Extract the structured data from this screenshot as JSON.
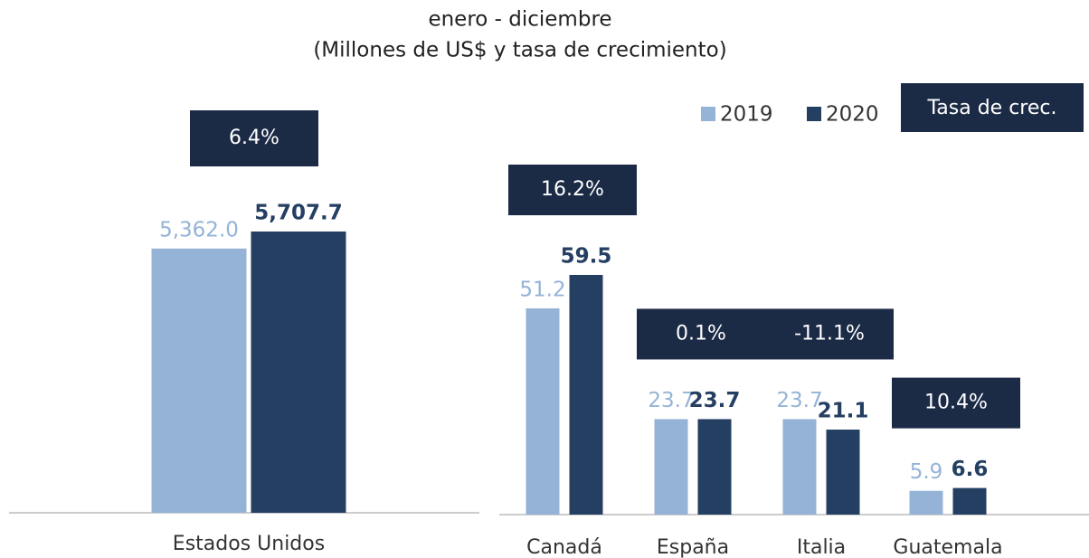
{
  "chart_data": [
    {
      "type": "bar",
      "title": "enero - diciembre",
      "subtitle": "(Millones de US$ y tasa de crecimiento)",
      "categories": [
        "Estados Unidos"
      ],
      "series": [
        {
          "name": "2019",
          "color": "#94b3d7",
          "values": [
            5362.0
          ],
          "value_labels": [
            "5,362.0"
          ]
        },
        {
          "name": "2020",
          "color": "#243f62",
          "values": [
            5707.7
          ],
          "value_labels": [
            "5,707.7"
          ]
        }
      ],
      "growth_rates": [
        6.4
      ],
      "growth_rate_labels": [
        "6.4%"
      ]
    },
    {
      "type": "bar",
      "growth_title": "Tasa de crec.",
      "categories": [
        "Canadá",
        "España",
        "Italia",
        "Guatemala"
      ],
      "series": [
        {
          "name": "2019",
          "color": "#94b3d7",
          "values": [
            51.2,
            23.7,
            23.7,
            5.9
          ]
        },
        {
          "name": "2020",
          "color": "#243f62",
          "values": [
            59.5,
            23.7,
            21.1,
            6.6
          ]
        }
      ],
      "growth_rates": [
        16.2,
        0.1,
        -11.1,
        10.4
      ],
      "growth_rate_labels": [
        "16.2%",
        "0.1%",
        "-11.1%",
        "10.4%"
      ],
      "legend": "top-right"
    }
  ]
}
